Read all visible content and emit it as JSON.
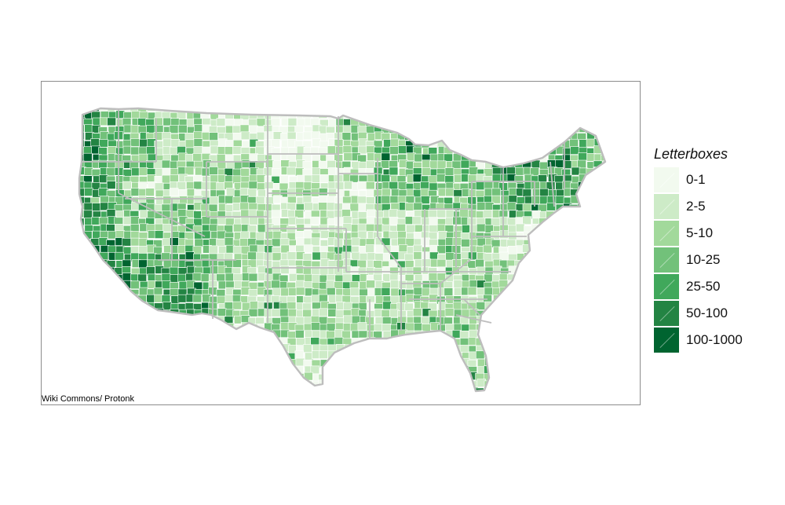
{
  "map": {
    "credit": "Wiki Commons/ Protonk",
    "legend": {
      "title": "Letterboxes",
      "classes": [
        {
          "label": "0-1",
          "color": "#f2faef"
        },
        {
          "label": "2-5",
          "color": "#cdebc7"
        },
        {
          "label": "5-10",
          "color": "#a2d99b"
        },
        {
          "label": "10-25",
          "color": "#72c17a"
        },
        {
          "label": "25-50",
          "color": "#40a85b"
        },
        {
          "label": "50-100",
          "color": "#238443"
        },
        {
          "label": "100-1000",
          "color": "#006430"
        }
      ]
    },
    "state_border_color": "#bdbdbd",
    "county_border_color": "#ffffff",
    "frame_color": "#8c8c8c"
  }
}
